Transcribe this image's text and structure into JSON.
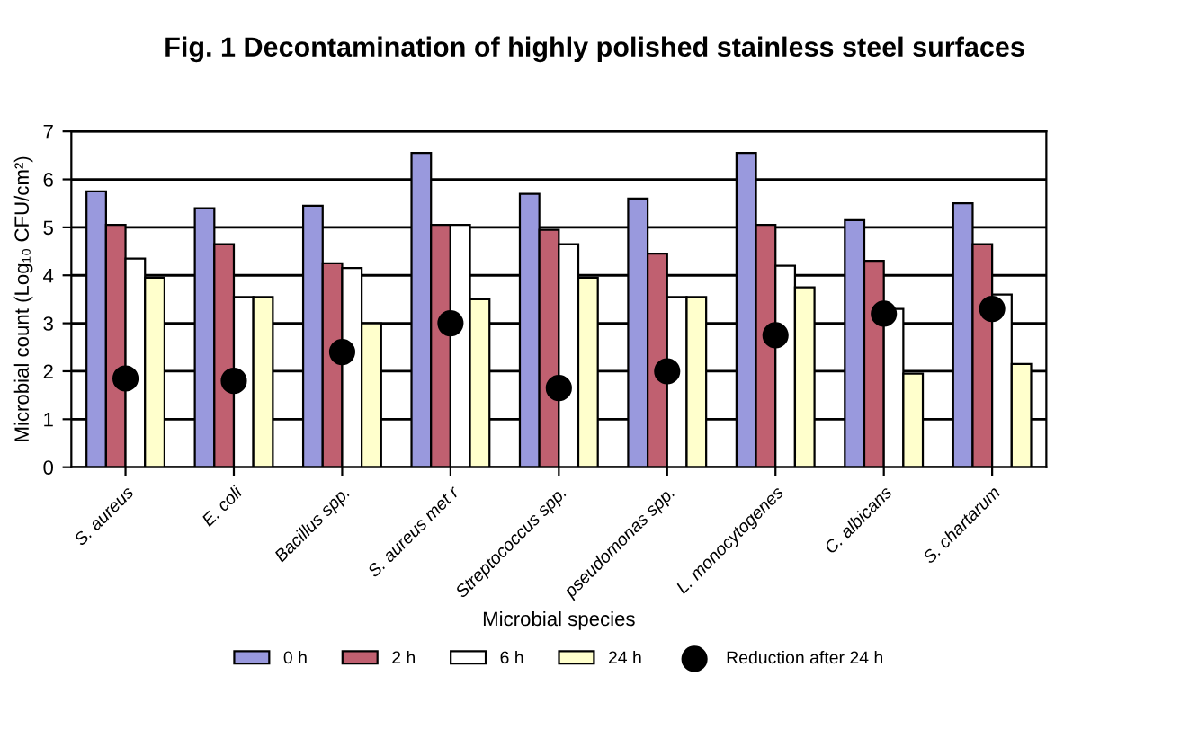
{
  "chart_data": {
    "type": "bar",
    "title": "Fig. 1 Decontamination of highly polished stainless steel surfaces",
    "xlabel": "Microbial species",
    "ylabel": "Microbial count (Log₁₀ CFU/cm²)",
    "categories": [
      "S. aureus",
      "E. coli",
      "Bacillus spp.",
      "S. aureus met r",
      "Streptococcus spp.",
      "pseudomonas spp.",
      "L. monocytogenes",
      "C. albicans",
      "S. chartarum"
    ],
    "series": [
      {
        "name": "0 h",
        "color": "#9999dd",
        "values": [
          5.75,
          5.4,
          5.45,
          6.55,
          5.7,
          5.6,
          6.55,
          5.15,
          5.5
        ]
      },
      {
        "name": "2 h",
        "color": "#c06070",
        "values": [
          5.05,
          4.65,
          4.25,
          5.05,
          4.95,
          4.45,
          5.05,
          4.3,
          4.65
        ]
      },
      {
        "name": "6 h",
        "color": "#ffffff",
        "values": [
          4.35,
          3.55,
          4.15,
          5.05,
          4.65,
          3.55,
          4.2,
          3.3,
          3.6
        ]
      },
      {
        "name": "24 h",
        "color": "#ffffcc",
        "values": [
          3.95,
          3.55,
          3.0,
          3.5,
          3.95,
          3.55,
          3.75,
          1.95,
          2.15
        ]
      },
      {
        "name": "Reduction after 24 h",
        "type": "scatter",
        "color": "#000000",
        "x": [
          "S. aureus",
          "E. coli",
          "Bacillus spp.",
          "S. aureus met r",
          "Streptococcus spp.",
          "pseudomonas spp.",
          "L. monocytogenes",
          "C. albicans",
          "S. chartarum"
        ],
        "values": [
          1.85,
          1.8,
          2.4,
          3.0,
          1.65,
          2.0,
          2.75,
          3.2,
          3.3
        ]
      }
    ],
    "ylim": [
      0,
      7
    ],
    "yticks": [
      0,
      1,
      2,
      3,
      4,
      5,
      6,
      7
    ],
    "grid": "y",
    "legend": "bottom",
    "marker": "circle"
  }
}
